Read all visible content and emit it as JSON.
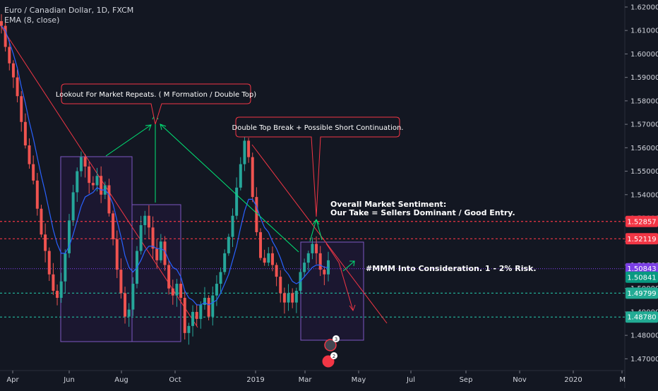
{
  "header": {
    "title": "Euro / Canadian Dollar, 1D, FXCM",
    "indicator": "EMA (8, close)"
  },
  "chart_data": {
    "type": "candlestick",
    "symbol": "Euro / Canadian Dollar",
    "interval": "1D",
    "source": "FXCM",
    "ylim": [
      1.465,
      1.623
    ],
    "y_ticks": [
      "1.62000",
      "1.61000",
      "1.60000",
      "1.59000",
      "1.58000",
      "1.57000",
      "1.56000",
      "1.55000",
      "1.54000",
      "1.53000",
      "1.52000",
      "1.51000",
      "1.50000",
      "1.49000",
      "1.48000",
      "1.47000"
    ],
    "x_ticks": [
      "Apr",
      "Jun",
      "Aug",
      "Oct",
      "2019",
      "Mar",
      "May",
      "Jul",
      "Sep",
      "Nov",
      "2020",
      "M"
    ],
    "grid": false,
    "price_closes": [
      1.612,
      1.603,
      1.596,
      1.59,
      1.582,
      1.571,
      1.561,
      1.553,
      1.546,
      1.534,
      1.523,
      1.516,
      1.506,
      1.499,
      1.496,
      1.503,
      1.515,
      1.529,
      1.541,
      1.55,
      1.556,
      1.552,
      1.545,
      1.544,
      1.548,
      1.54,
      1.544,
      1.532,
      1.521,
      1.508,
      1.498,
      1.488,
      1.491,
      1.502,
      1.516,
      1.527,
      1.531,
      1.526,
      1.517,
      1.512,
      1.52,
      1.51,
      1.5,
      1.497,
      1.502,
      1.496,
      1.481,
      1.484,
      1.49,
      1.487,
      1.493,
      1.496,
      1.488,
      1.497,
      1.502,
      1.507,
      1.515,
      1.522,
      1.531,
      1.543,
      1.553,
      1.563,
      1.556,
      1.539,
      1.524,
      1.513,
      1.511,
      1.515,
      1.51,
      1.505,
      1.498,
      1.494,
      1.498,
      1.494,
      1.499,
      1.507,
      1.511,
      1.515,
      1.519,
      1.515,
      1.508,
      1.506,
      1.512
    ],
    "ema_8": [
      1.612,
      1.61,
      1.605,
      1.6,
      1.594,
      1.586,
      1.579,
      1.571,
      1.564,
      1.556,
      1.548,
      1.541,
      1.533,
      1.525,
      1.519,
      1.515,
      1.515,
      1.518,
      1.523,
      1.529,
      1.535,
      1.539,
      1.54,
      1.541,
      1.543,
      1.542,
      1.542,
      1.54,
      1.536,
      1.529,
      1.522,
      1.514,
      1.509,
      1.507,
      1.509,
      1.512,
      1.516,
      1.518,
      1.518,
      1.517,
      1.517,
      1.516,
      1.512,
      1.509,
      1.508,
      1.505,
      1.499,
      1.496,
      1.495,
      1.493,
      1.493,
      1.494,
      1.493,
      1.494,
      1.495,
      1.498,
      1.502,
      1.506,
      1.512,
      1.518,
      1.526,
      1.533,
      1.538,
      1.538,
      1.535,
      1.53,
      1.526,
      1.524,
      1.52,
      1.517,
      1.513,
      1.508,
      1.506,
      1.503,
      1.502,
      1.503,
      1.505,
      1.507,
      1.509,
      1.51,
      1.51,
      1.509,
      1.509
    ],
    "horizontal_levels": [
      {
        "value": 1.52857,
        "label": "1.52857",
        "color": "#f23645",
        "style": "dashed"
      },
      {
        "value": 1.52119,
        "label": "1.52119",
        "color": "#f23645",
        "style": "dashed"
      },
      {
        "value": 1.50843,
        "label": "1.50843",
        "color": "#7b3fe4",
        "style": "dotted"
      },
      {
        "value": 1.49799,
        "label": "1.49799",
        "color": "#22ab94",
        "style": "dashed"
      },
      {
        "value": 1.4878,
        "label": "1.48780",
        "color": "#22ab94",
        "style": "dashed"
      }
    ],
    "price_label": {
      "value": 1.50841,
      "label": "1.50841",
      "color": "#089981"
    },
    "annotations": [
      {
        "id": "callout-m-formation",
        "text": "Lookout For Market Repeats. ( M Formation / Double Top)"
      },
      {
        "id": "callout-double-top-break",
        "text": "Double Top Break + Possible Short Continuation."
      },
      {
        "id": "sentiment-line-1",
        "text": "Overall Market Sentiment:"
      },
      {
        "id": "sentiment-line-2",
        "text": "Our Take = Sellers Dominant / Good Entry."
      },
      {
        "id": "risk-note",
        "text": "#MMM Into Consideration. 1 - 2% Risk."
      }
    ],
    "event_badges": [
      "3",
      "2"
    ],
    "colors": {
      "background": "#131722",
      "up": "#26a69a",
      "down": "#ef5350",
      "ema": "#2962ff",
      "trendline": "#f23645",
      "green_arrow": "#00e676",
      "box_border": "#7e57c2",
      "box_fill": "#1d1733",
      "axis_text": "#d1d4dc"
    }
  }
}
